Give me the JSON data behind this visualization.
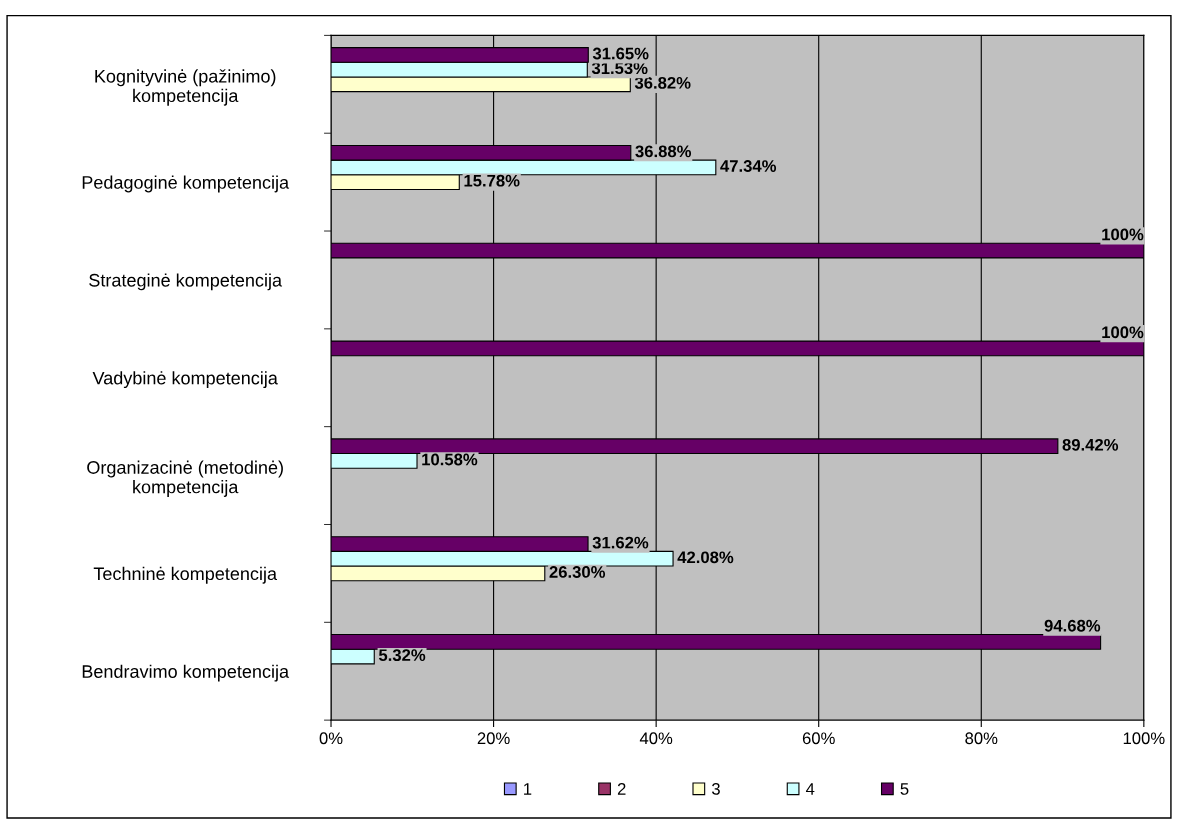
{
  "chart_data": {
    "type": "bar",
    "orientation": "horizontal",
    "categories": [
      "Kognityvinė (pažinimo)\nkompetencija",
      "Pedagoginė kompetencija",
      "Strateginė kompetencija",
      "Vadybinė kompetencija",
      "Organizacinė (metodinė)\nkompetencija",
      "Techninė kompetencija",
      "Bendravimo kompetencija"
    ],
    "series": [
      {
        "name": "1",
        "color": "#9999ff",
        "values": [
          null,
          null,
          null,
          null,
          null,
          null,
          null
        ]
      },
      {
        "name": "2",
        "color": "#993366",
        "values": [
          null,
          null,
          null,
          null,
          null,
          null,
          null
        ]
      },
      {
        "name": "3",
        "color": "#ffffcc",
        "values": [
          36.82,
          15.78,
          null,
          null,
          null,
          26.3,
          null
        ],
        "value_labels": [
          "36.82%",
          "15.78%",
          null,
          null,
          null,
          "26.30%",
          null
        ]
      },
      {
        "name": "4",
        "color": "#ccffff",
        "values": [
          31.53,
          47.34,
          null,
          null,
          10.58,
          42.08,
          5.32
        ],
        "value_labels": [
          "31.53%",
          "47.34%",
          null,
          null,
          "10.58%",
          "42.08%",
          "5.32%"
        ]
      },
      {
        "name": "5",
        "color": "#660066",
        "values": [
          31.65,
          36.88,
          100,
          100,
          89.42,
          31.62,
          94.68
        ],
        "value_labels": [
          "31.65%",
          "36.88%",
          "100%",
          "100%",
          "89.42%",
          "31.62%",
          "94.68%"
        ]
      }
    ],
    "xlim": [
      0,
      100
    ],
    "xticks": [
      {
        "value": 0,
        "label": "0%"
      },
      {
        "value": 20,
        "label": "20%"
      },
      {
        "value": 40,
        "label": "40%"
      },
      {
        "value": 60,
        "label": "60%"
      },
      {
        "value": 80,
        "label": "80%"
      },
      {
        "value": 100,
        "label": "100%"
      }
    ],
    "grid": "x",
    "legend": "bottom"
  }
}
